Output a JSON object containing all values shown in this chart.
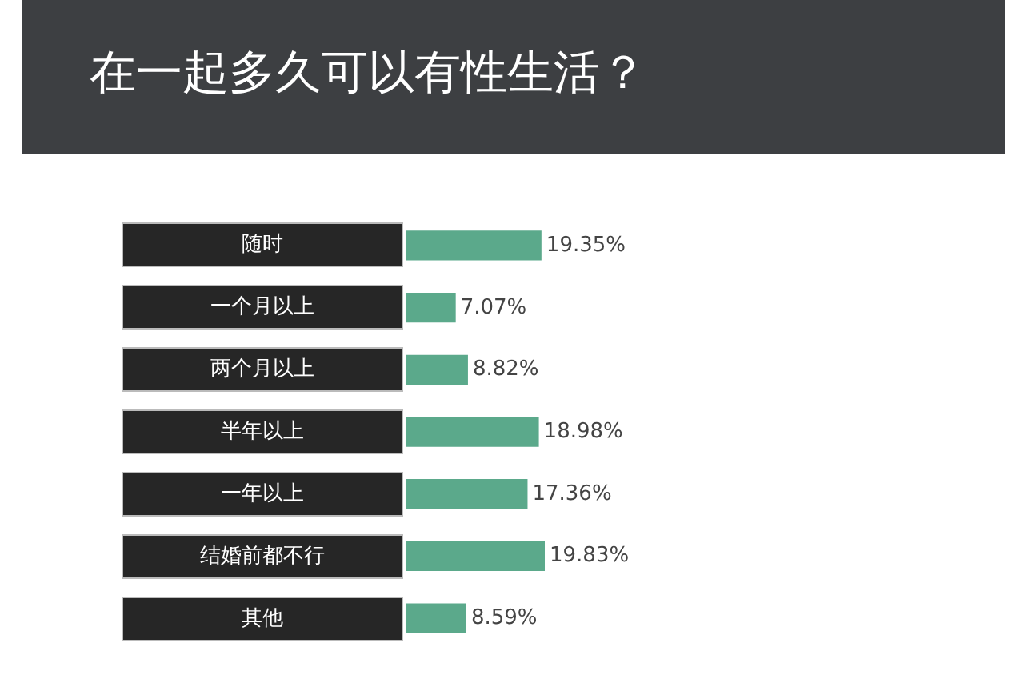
{
  "chart_data": {
    "type": "bar",
    "orientation": "horizontal",
    "title": "在一起多久可以有性生活？",
    "categories": [
      "随时",
      "一个月以上",
      "两个月以上",
      "半年以上",
      "一年以上",
      "结婚前都不行",
      "其他"
    ],
    "values": [
      19.35,
      7.07,
      8.82,
      18.98,
      17.36,
      19.83,
      8.59
    ],
    "value_labels": [
      "19.35%",
      "7.07%",
      "8.82%",
      "18.98%",
      "17.36%",
      "19.83%",
      "8.59%"
    ],
    "color": "#5ba98b",
    "grid": false,
    "legend": false
  }
}
